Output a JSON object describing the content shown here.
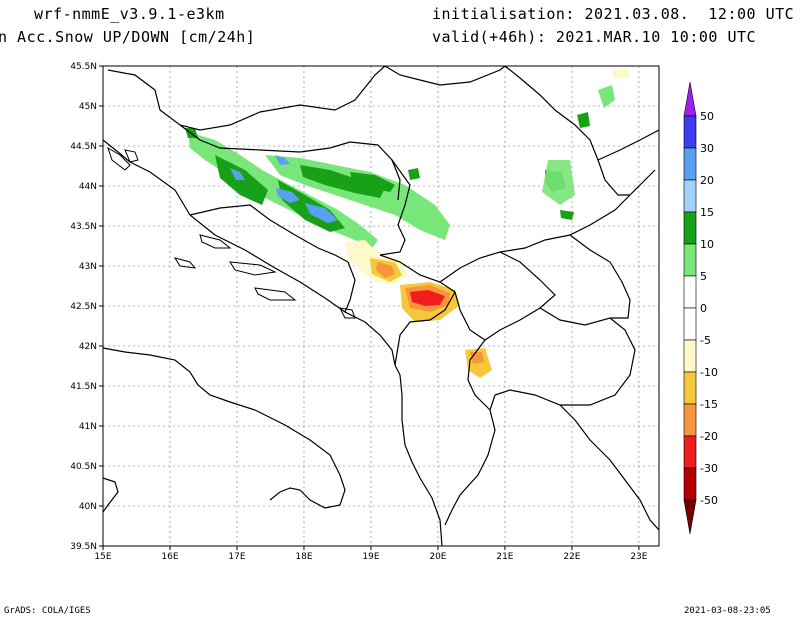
{
  "header": {
    "model": "wrf-nmmE_v3.9.1-e3km",
    "field": "n Acc.Snow UP/DOWN [cm/24h]",
    "init": "initialisation: 2021.03.08.  12:00 UTC",
    "valid": "valid(+46h): 2021.MAR.10 10:00 UTC"
  },
  "footer": {
    "left": "GrADS: COLA/IGES",
    "right": "2021-03-08-23:05"
  },
  "map": {
    "lat_labels": [
      "45.5N",
      "45N",
      "44.5N",
      "44N",
      "43.5N",
      "43N",
      "42.5N",
      "42N",
      "41.5N",
      "41N",
      "40.5N",
      "40N",
      "39.5N"
    ],
    "lon_labels": [
      "15E",
      "16E",
      "17E",
      "18E",
      "19E",
      "20E",
      "21E",
      "22E",
      "23E"
    ],
    "lat_range": [
      39.5,
      45.5
    ],
    "lon_range": [
      15,
      23.3
    ],
    "grid": true
  },
  "colorbar": {
    "labels": [
      "50",
      "30",
      "20",
      "15",
      "10",
      "5",
      "0",
      "-5",
      "-10",
      "-15",
      "-20",
      "-30",
      "-50"
    ],
    "colors": {
      "c50_30": "#3c3cf0",
      "c30_20": "#5aa0f0",
      "c20_15": "#a0d2fa",
      "c15_10": "#18a018",
      "c10_5": "#78e678",
      "c5_0": "#ffffff",
      "cm0_5": "#ffffff",
      "cm5_10": "#fff8c8",
      "cm10_15": "#f5c83c",
      "cm15_20": "#f5963c",
      "cm20_30": "#f01e1e",
      "cm30_50": "#b40000",
      "top": "#a020f0",
      "bottom": "#780000"
    }
  }
}
